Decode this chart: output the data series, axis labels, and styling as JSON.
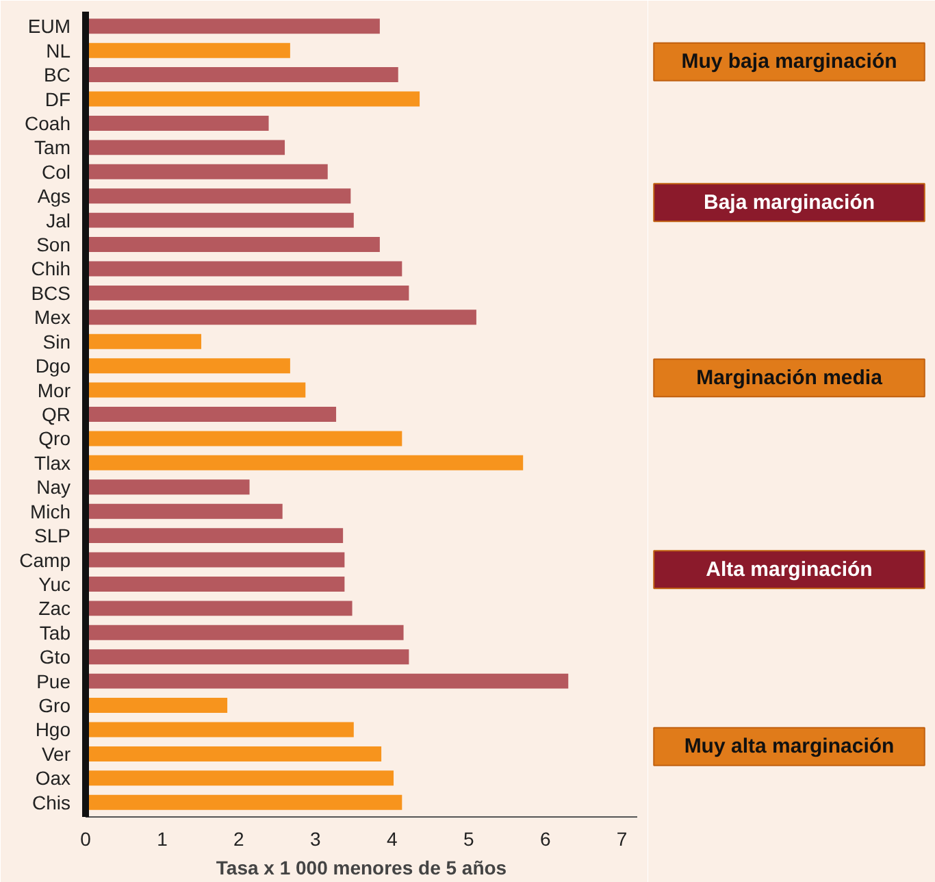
{
  "chart_data": {
    "type": "bar",
    "orientation": "horizontal",
    "xlabel": "Tasa x 1 000 menores de 5 años",
    "categories": [
      "EUM",
      "NL",
      "BC",
      "DF",
      "Coah",
      "Tam",
      "Col",
      "Ags",
      "Jal",
      "Son",
      "Chih",
      "BCS",
      "Mex",
      "Sin",
      "Dgo",
      "Mor",
      "QR",
      "Qro",
      "Tlax",
      "Nay",
      "Mich",
      "SLP",
      "Camp",
      "Yuc",
      "Zac",
      "Tab",
      "Gto",
      "Pue",
      "Gro",
      "Hgo",
      "Ver",
      "Oax",
      "Chis"
    ],
    "values": [
      3.84,
      2.67,
      4.08,
      4.36,
      2.39,
      2.6,
      3.16,
      3.46,
      3.5,
      3.84,
      4.13,
      4.22,
      5.1,
      1.51,
      2.67,
      2.87,
      3.27,
      4.13,
      5.71,
      2.14,
      2.57,
      3.36,
      3.38,
      3.38,
      3.48,
      4.15,
      4.22,
      6.3,
      1.85,
      3.5,
      3.86,
      4.02,
      4.13
    ],
    "colors": [
      "#b5595e",
      "#f7941d",
      "#b5595e",
      "#f7941d",
      "#b5595e",
      "#b5595e",
      "#b5595e",
      "#b5595e",
      "#b5595e",
      "#b5595e",
      "#b5595e",
      "#b5595e",
      "#b5595e",
      "#f7941d",
      "#f7941d",
      "#f7941d",
      "#b5595e",
      "#f7941d",
      "#f7941d",
      "#b5595e",
      "#b5595e",
      "#b5595e",
      "#b5595e",
      "#b5595e",
      "#b5595e",
      "#b5595e",
      "#b5595e",
      "#b5595e",
      "#f7941d",
      "#f7941d",
      "#f7941d",
      "#f7941d",
      "#f7941d"
    ],
    "xlim": [
      0,
      7.2
    ],
    "xticks": [
      0,
      1,
      2,
      3,
      4,
      5,
      6,
      7
    ],
    "grid": false,
    "annotations": [
      "Muy baja marginación",
      "Baja marginación",
      "Marginación media",
      "Alta marginación",
      "Muy alta marginación"
    ]
  }
}
